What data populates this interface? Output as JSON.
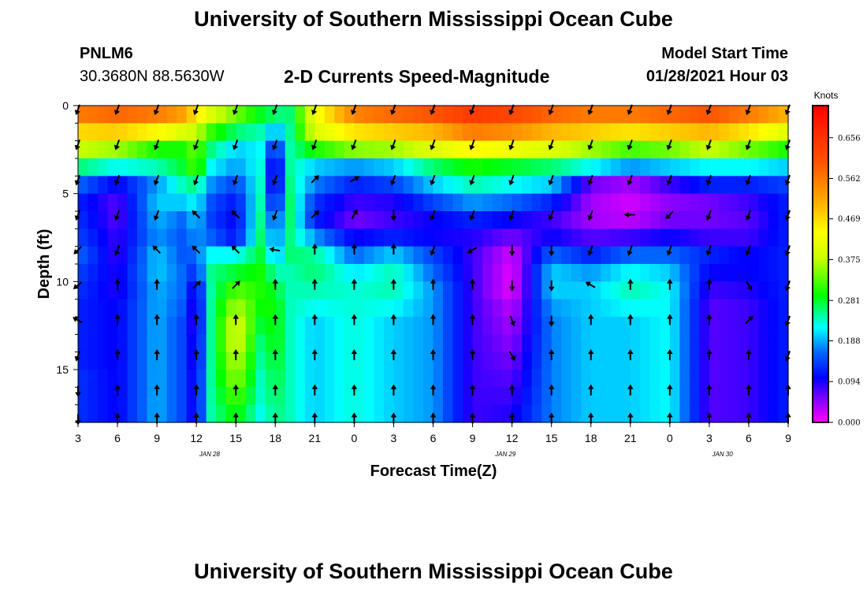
{
  "page": {
    "title_top": "University of Southern Mississippi Ocean Cube",
    "title_bottom": "University of Southern Mississippi Ocean Cube",
    "station_id": "PNLM6",
    "coordinates": "30.3680N 88.5630W",
    "subtitle": "2-D Currents Speed-Magnitude",
    "model_start_label": "Model Start Time",
    "model_start_value": "01/28/2021 Hour 03"
  },
  "chart_data": {
    "type": "heatmap",
    "title": "2-D Currents Speed-Magnitude",
    "xlabel": "Forecast Time(Z)",
    "ylabel": "Depth (ft)",
    "x_tick_labels": [
      "3",
      "6",
      "9",
      "12",
      "15",
      "18",
      "21",
      "0",
      "3",
      "6",
      "9",
      "12",
      "15",
      "18",
      "21",
      "0",
      "3",
      "6",
      "9"
    ],
    "x_range_hours": [
      0,
      54
    ],
    "x_tick_step_hours": 3,
    "date_labels": [
      {
        "text": "JAN 28",
        "hour": 10
      },
      {
        "text": "JAN 29",
        "hour": 32.5
      },
      {
        "text": "JAN 30",
        "hour": 49
      }
    ],
    "y_tick_labels": [
      "0",
      "5",
      "10",
      "15"
    ],
    "y_range": [
      0,
      18
    ],
    "y_ticks": [
      0,
      5,
      10,
      15
    ],
    "colorbar": {
      "unit": "Knots",
      "labels": [
        "0.656",
        "0.562",
        "0.469",
        "0.375",
        "0.281",
        "0.188",
        "0.094",
        "0.000"
      ],
      "ticks": [
        0.656,
        0.562,
        0.469,
        0.375,
        0.281,
        0.188,
        0.094,
        0.0
      ],
      "range": [
        0,
        0.73
      ]
    },
    "time_columns": [
      {
        "hour": 0,
        "profile": [
          0.56,
          0.47,
          0.38,
          0.26,
          0.16,
          0.12,
          0.13,
          0.14,
          0.16,
          0.14,
          0.13,
          0.12,
          0.12,
          0.12,
          0.12,
          0.13,
          0.13,
          0.13
        ]
      },
      {
        "hour": 3,
        "profile": [
          0.58,
          0.48,
          0.36,
          0.22,
          0.1,
          0.07,
          0.07,
          0.08,
          0.08,
          0.09,
          0.09,
          0.1,
          0.1,
          0.1,
          0.1,
          0.1,
          0.1,
          0.1
        ]
      },
      {
        "hour": 6,
        "profile": [
          0.56,
          0.44,
          0.3,
          0.24,
          0.18,
          0.2,
          0.19,
          0.18,
          0.2,
          0.2,
          0.19,
          0.19,
          0.19,
          0.19,
          0.19,
          0.19,
          0.19,
          0.19
        ]
      },
      {
        "hour": 8,
        "profile": [
          0.52,
          0.4,
          0.3,
          0.28,
          0.24,
          0.2,
          0.16,
          0.15,
          0.15,
          0.16,
          0.16,
          0.15,
          0.14,
          0.14,
          0.14,
          0.14,
          0.14,
          0.14
        ]
      },
      {
        "hour": 9,
        "profile": [
          0.46,
          0.38,
          0.34,
          0.33,
          0.26,
          0.22,
          0.2,
          0.18,
          0.16,
          0.12,
          0.08,
          0.07,
          0.07,
          0.08,
          0.08,
          0.09,
          0.09,
          0.09
        ]
      },
      {
        "hour": 10,
        "profile": [
          0.4,
          0.32,
          0.26,
          0.22,
          0.18,
          0.15,
          0.14,
          0.16,
          0.22,
          0.25,
          0.24,
          0.24,
          0.24,
          0.24,
          0.24,
          0.24,
          0.24,
          0.24
        ]
      },
      {
        "hour": 12,
        "profile": [
          0.34,
          0.26,
          0.2,
          0.18,
          0.14,
          0.11,
          0.1,
          0.11,
          0.22,
          0.28,
          0.33,
          0.37,
          0.4,
          0.4,
          0.38,
          0.36,
          0.33,
          0.3
        ]
      },
      {
        "hour": 14,
        "profile": [
          0.28,
          0.24,
          0.22,
          0.23,
          0.24,
          0.25,
          0.26,
          0.27,
          0.28,
          0.3,
          0.3,
          0.29,
          0.27,
          0.25,
          0.24,
          0.23,
          0.23,
          0.22
        ]
      },
      {
        "hour": 15,
        "profile": [
          0.26,
          0.18,
          0.1,
          0.05,
          0.05,
          0.08,
          0.12,
          0.15,
          0.18,
          0.24,
          0.28,
          0.3,
          0.3,
          0.3,
          0.29,
          0.28,
          0.27,
          0.26
        ]
      },
      {
        "hour": 16,
        "profile": [
          0.25,
          0.24,
          0.24,
          0.25,
          0.26,
          0.27,
          0.27,
          0.26,
          0.26,
          0.24,
          0.24,
          0.24,
          0.24,
          0.24,
          0.24,
          0.24,
          0.24,
          0.24
        ]
      },
      {
        "hour": 18,
        "profile": [
          0.42,
          0.4,
          0.3,
          0.2,
          0.17,
          0.13,
          0.12,
          0.18,
          0.25,
          0.26,
          0.24,
          0.22,
          0.2,
          0.2,
          0.2,
          0.2,
          0.2,
          0.2
        ]
      },
      {
        "hour": 21,
        "profile": [
          0.55,
          0.46,
          0.35,
          0.18,
          0.12,
          0.08,
          0.06,
          0.1,
          0.16,
          0.21,
          0.23,
          0.23,
          0.23,
          0.23,
          0.23,
          0.23,
          0.23,
          0.23
        ]
      },
      {
        "hour": 24,
        "profile": [
          0.58,
          0.48,
          0.36,
          0.2,
          0.14,
          0.09,
          0.08,
          0.12,
          0.2,
          0.24,
          0.24,
          0.22,
          0.2,
          0.2,
          0.2,
          0.2,
          0.2,
          0.2
        ]
      },
      {
        "hour": 27,
        "profile": [
          0.6,
          0.5,
          0.4,
          0.26,
          0.2,
          0.14,
          0.1,
          0.1,
          0.14,
          0.16,
          0.18,
          0.18,
          0.18,
          0.18,
          0.18,
          0.18,
          0.18,
          0.18
        ]
      },
      {
        "hour": 30,
        "profile": [
          0.64,
          0.56,
          0.44,
          0.3,
          0.24,
          0.18,
          0.12,
          0.09,
          0.08,
          0.08,
          0.08,
          0.08,
          0.08,
          0.08,
          0.08,
          0.08,
          0.08,
          0.08
        ]
      },
      {
        "hour": 33,
        "profile": [
          0.62,
          0.54,
          0.42,
          0.28,
          0.22,
          0.16,
          0.1,
          0.06,
          0.02,
          0.01,
          0.01,
          0.03,
          0.04,
          0.05,
          0.06,
          0.07,
          0.08,
          0.09
        ]
      },
      {
        "hour": 36,
        "profile": [
          0.58,
          0.5,
          0.4,
          0.26,
          0.2,
          0.12,
          0.08,
          0.1,
          0.16,
          0.2,
          0.2,
          0.18,
          0.17,
          0.17,
          0.17,
          0.17,
          0.17,
          0.17
        ]
      },
      {
        "hour": 39,
        "profile": [
          0.56,
          0.48,
          0.36,
          0.22,
          0.06,
          0.04,
          0.04,
          0.07,
          0.12,
          0.18,
          0.2,
          0.2,
          0.2,
          0.2,
          0.2,
          0.2,
          0.2,
          0.2
        ]
      },
      {
        "hour": 42,
        "profile": [
          0.56,
          0.46,
          0.32,
          0.18,
          0.04,
          0.02,
          0.03,
          0.08,
          0.16,
          0.22,
          0.24,
          0.22,
          0.2,
          0.2,
          0.2,
          0.2,
          0.2,
          0.2
        ]
      },
      {
        "hour": 45,
        "profile": [
          0.58,
          0.48,
          0.34,
          0.2,
          0.08,
          0.05,
          0.06,
          0.1,
          0.16,
          0.2,
          0.22,
          0.22,
          0.22,
          0.22,
          0.22,
          0.22,
          0.22,
          0.22
        ]
      },
      {
        "hour": 48,
        "profile": [
          0.6,
          0.5,
          0.38,
          0.22,
          0.12,
          0.06,
          0.06,
          0.08,
          0.12,
          0.1,
          0.08,
          0.07,
          0.07,
          0.07,
          0.07,
          0.07,
          0.07,
          0.07
        ]
      },
      {
        "hour": 51,
        "profile": [
          0.56,
          0.46,
          0.34,
          0.22,
          0.12,
          0.08,
          0.07,
          0.08,
          0.1,
          0.1,
          0.09,
          0.08,
          0.08,
          0.08,
          0.08,
          0.08,
          0.08,
          0.08
        ]
      },
      {
        "hour": 54,
        "profile": [
          0.5,
          0.4,
          0.3,
          0.2,
          0.14,
          0.12,
          0.12,
          0.12,
          0.12,
          0.12,
          0.12,
          0.12,
          0.12,
          0.12,
          0.12,
          0.12,
          0.12,
          0.12
        ]
      }
    ],
    "arrow_times_hours": [
      0,
      3,
      6,
      9,
      12,
      15,
      18,
      21,
      24,
      27,
      30,
      33,
      36,
      39,
      42,
      45,
      48,
      51,
      54
    ],
    "arrow_depths_ft": [
      0.2,
      2.2,
      4.2,
      6.2,
      8.2,
      10.2,
      12.2,
      14.2,
      16.2,
      17.8
    ],
    "arrow_directions_deg": [
      [
        200,
        200,
        200,
        200,
        225,
        230,
        300,
        200,
        180,
        180
      ],
      [
        200,
        200,
        200,
        200,
        200,
        0,
        0,
        0,
        0,
        0
      ],
      [
        200,
        200,
        200,
        200,
        315,
        0,
        0,
        0,
        0,
        0
      ],
      [
        200,
        200,
        200,
        315,
        315,
        45,
        0,
        0,
        0,
        0
      ],
      [
        200,
        200,
        200,
        315,
        315,
        45,
        0,
        0,
        0,
        0
      ],
      [
        200,
        200,
        200,
        200,
        280,
        0,
        0,
        0,
        0,
        0
      ],
      [
        200,
        200,
        45,
        45,
        0,
        0,
        0,
        0,
        0,
        0
      ],
      [
        200,
        200,
        60,
        30,
        0,
        0,
        0,
        0,
        0,
        0
      ],
      [
        200,
        200,
        200,
        180,
        0,
        0,
        0,
        0,
        0,
        0
      ],
      [
        200,
        200,
        200,
        200,
        200,
        0,
        0,
        0,
        0,
        0
      ],
      [
        200,
        200,
        200,
        200,
        240,
        0,
        0,
        0,
        0,
        0
      ],
      [
        200,
        200,
        200,
        200,
        180,
        180,
        160,
        150,
        0,
        0
      ],
      [
        200,
        200,
        200,
        200,
        180,
        180,
        180,
        0,
        0,
        0
      ],
      [
        200,
        200,
        200,
        200,
        200,
        300,
        0,
        0,
        0,
        0
      ],
      [
        200,
        200,
        200,
        270,
        200,
        0,
        0,
        0,
        0,
        0
      ],
      [
        200,
        200,
        200,
        225,
        200,
        0,
        0,
        0,
        0,
        0
      ],
      [
        200,
        200,
        200,
        200,
        200,
        0,
        0,
        0,
        0,
        0
      ],
      [
        200,
        200,
        200,
        200,
        200,
        150,
        45,
        0,
        0,
        0
      ],
      [
        200,
        200,
        200,
        200,
        200,
        200,
        200,
        200,
        0,
        0
      ]
    ]
  }
}
